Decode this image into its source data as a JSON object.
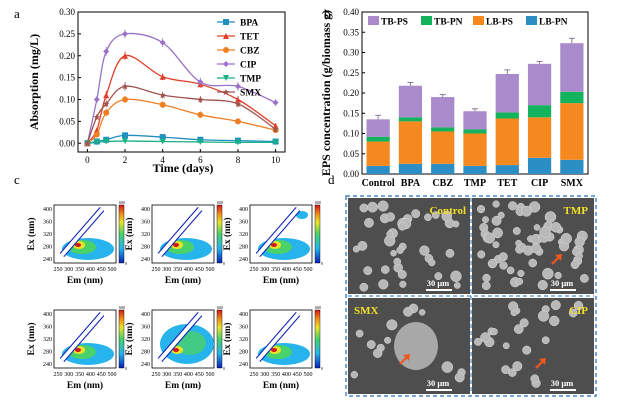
{
  "panel_labels": {
    "a": "a",
    "b": "b",
    "c": "c",
    "d": "d"
  },
  "chart_data": [
    {
      "type": "line",
      "panel": "a",
      "title": "",
      "xlabel": "Time (days)",
      "ylabel": "Absorption (mg/L)",
      "xlim": [
        -0.5,
        10.5
      ],
      "ylim": [
        -0.02,
        0.3
      ],
      "xticks": [
        "0",
        "2",
        "4",
        "6",
        "8",
        "10"
      ],
      "yticks": [
        "0.00",
        "0.05",
        "0.10",
        "0.15",
        "0.20",
        "0.25",
        "0.30"
      ],
      "x": [
        0,
        0.5,
        1,
        2,
        4,
        6,
        8,
        10
      ],
      "series": [
        {
          "name": "BPA",
          "color": "#1f8fbf",
          "marker": "square",
          "values": [
            0.0,
            0.004,
            0.008,
            0.018,
            0.014,
            0.008,
            0.006,
            0.004
          ],
          "err": [
            0.003,
            0.003,
            0.004,
            0.006,
            0.004,
            0.003,
            0.003,
            0.003
          ]
        },
        {
          "name": "TET",
          "color": "#e0412b",
          "marker": "triangle",
          "values": [
            0.0,
            0.03,
            0.11,
            0.2,
            0.152,
            0.135,
            0.1,
            0.04
          ],
          "err": [
            0.003,
            0.006,
            0.01,
            0.01,
            0.008,
            0.008,
            0.008,
            0.006
          ]
        },
        {
          "name": "CBZ",
          "color": "#f07e22",
          "marker": "circle",
          "values": [
            0.0,
            0.02,
            0.07,
            0.1,
            0.088,
            0.065,
            0.05,
            0.03
          ],
          "err": [
            0.003,
            0.005,
            0.008,
            0.008,
            0.008,
            0.008,
            0.006,
            0.006
          ]
        },
        {
          "name": "CIP",
          "color": "#9b72c9",
          "marker": "diamond",
          "values": [
            0.0,
            0.1,
            0.21,
            0.25,
            0.23,
            0.14,
            0.13,
            0.093
          ],
          "err": [
            0.003,
            0.008,
            0.01,
            0.01,
            0.01,
            0.01,
            0.01,
            0.008
          ]
        },
        {
          "name": "TMP",
          "color": "#1ab086",
          "marker": "triangle-down",
          "values": [
            0.0,
            0.002,
            0.004,
            0.005,
            0.004,
            0.003,
            0.002,
            0.002
          ],
          "err": [
            0.002,
            0.002,
            0.003,
            0.003,
            0.003,
            0.002,
            0.002,
            0.002
          ]
        },
        {
          "name": "SMX",
          "color": "#a0524d",
          "marker": "star",
          "values": [
            0.0,
            0.06,
            0.09,
            0.13,
            0.11,
            0.1,
            0.09,
            0.032
          ],
          "err": [
            0.003,
            0.006,
            0.008,
            0.01,
            0.008,
            0.008,
            0.008,
            0.006
          ]
        }
      ]
    },
    {
      "type": "bar",
      "panel": "b",
      "stacked": true,
      "title": "",
      "xlabel": "",
      "ylabel": "EPS concentration (g/biomass g)",
      "ylim": [
        0,
        0.4
      ],
      "yticks": [
        "0.00",
        "0.05",
        "0.10",
        "0.15",
        "0.20",
        "0.25",
        "0.30",
        "0.35",
        "0.40"
      ],
      "categories": [
        "Control",
        "BPA",
        "CBZ",
        "TMP",
        "TET",
        "CIP",
        "SMX"
      ],
      "legend": [
        "TB-PS",
        "TB-PN",
        "LB-PS",
        "LB-PN"
      ],
      "series": [
        {
          "name": "LB-PN",
          "color": "#2b8fc6",
          "values": [
            0.02,
            0.025,
            0.025,
            0.02,
            0.022,
            0.04,
            0.035
          ]
        },
        {
          "name": "LB-PS",
          "color": "#f5881f",
          "values": [
            0.06,
            0.105,
            0.08,
            0.08,
            0.115,
            0.1,
            0.14
          ]
        },
        {
          "name": "TB-PN",
          "color": "#13b25c",
          "values": [
            0.012,
            0.01,
            0.01,
            0.01,
            0.015,
            0.03,
            0.028
          ]
        },
        {
          "name": "TB-PS",
          "color": "#a98bcc",
          "values": [
            0.043,
            0.078,
            0.075,
            0.045,
            0.095,
            0.102,
            0.12
          ]
        }
      ],
      "totals_err": [
        0.01,
        0.008,
        0.006,
        0.006,
        0.01,
        0.006,
        0.012
      ]
    },
    {
      "type": "heatmap",
      "panel": "c",
      "title": "",
      "xlabel": "Em (nm)",
      "ylabel": "Ex (nm)",
      "xticks": [
        "250",
        "300",
        "350",
        "400",
        "450",
        "500"
      ],
      "yticks": [
        "400",
        "360",
        "320",
        "280",
        "240"
      ],
      "colorbar_ticks": [
        "600",
        "0"
      ],
      "count": 6
    }
  ],
  "panel_d": {
    "tiles": [
      {
        "label": "Control",
        "scale": "30 μm"
      },
      {
        "label": "TMP",
        "scale": "30 μm"
      },
      {
        "label": "SMX",
        "scale": "30 μm"
      },
      {
        "label": "CIP",
        "scale": "30 μm"
      }
    ]
  }
}
